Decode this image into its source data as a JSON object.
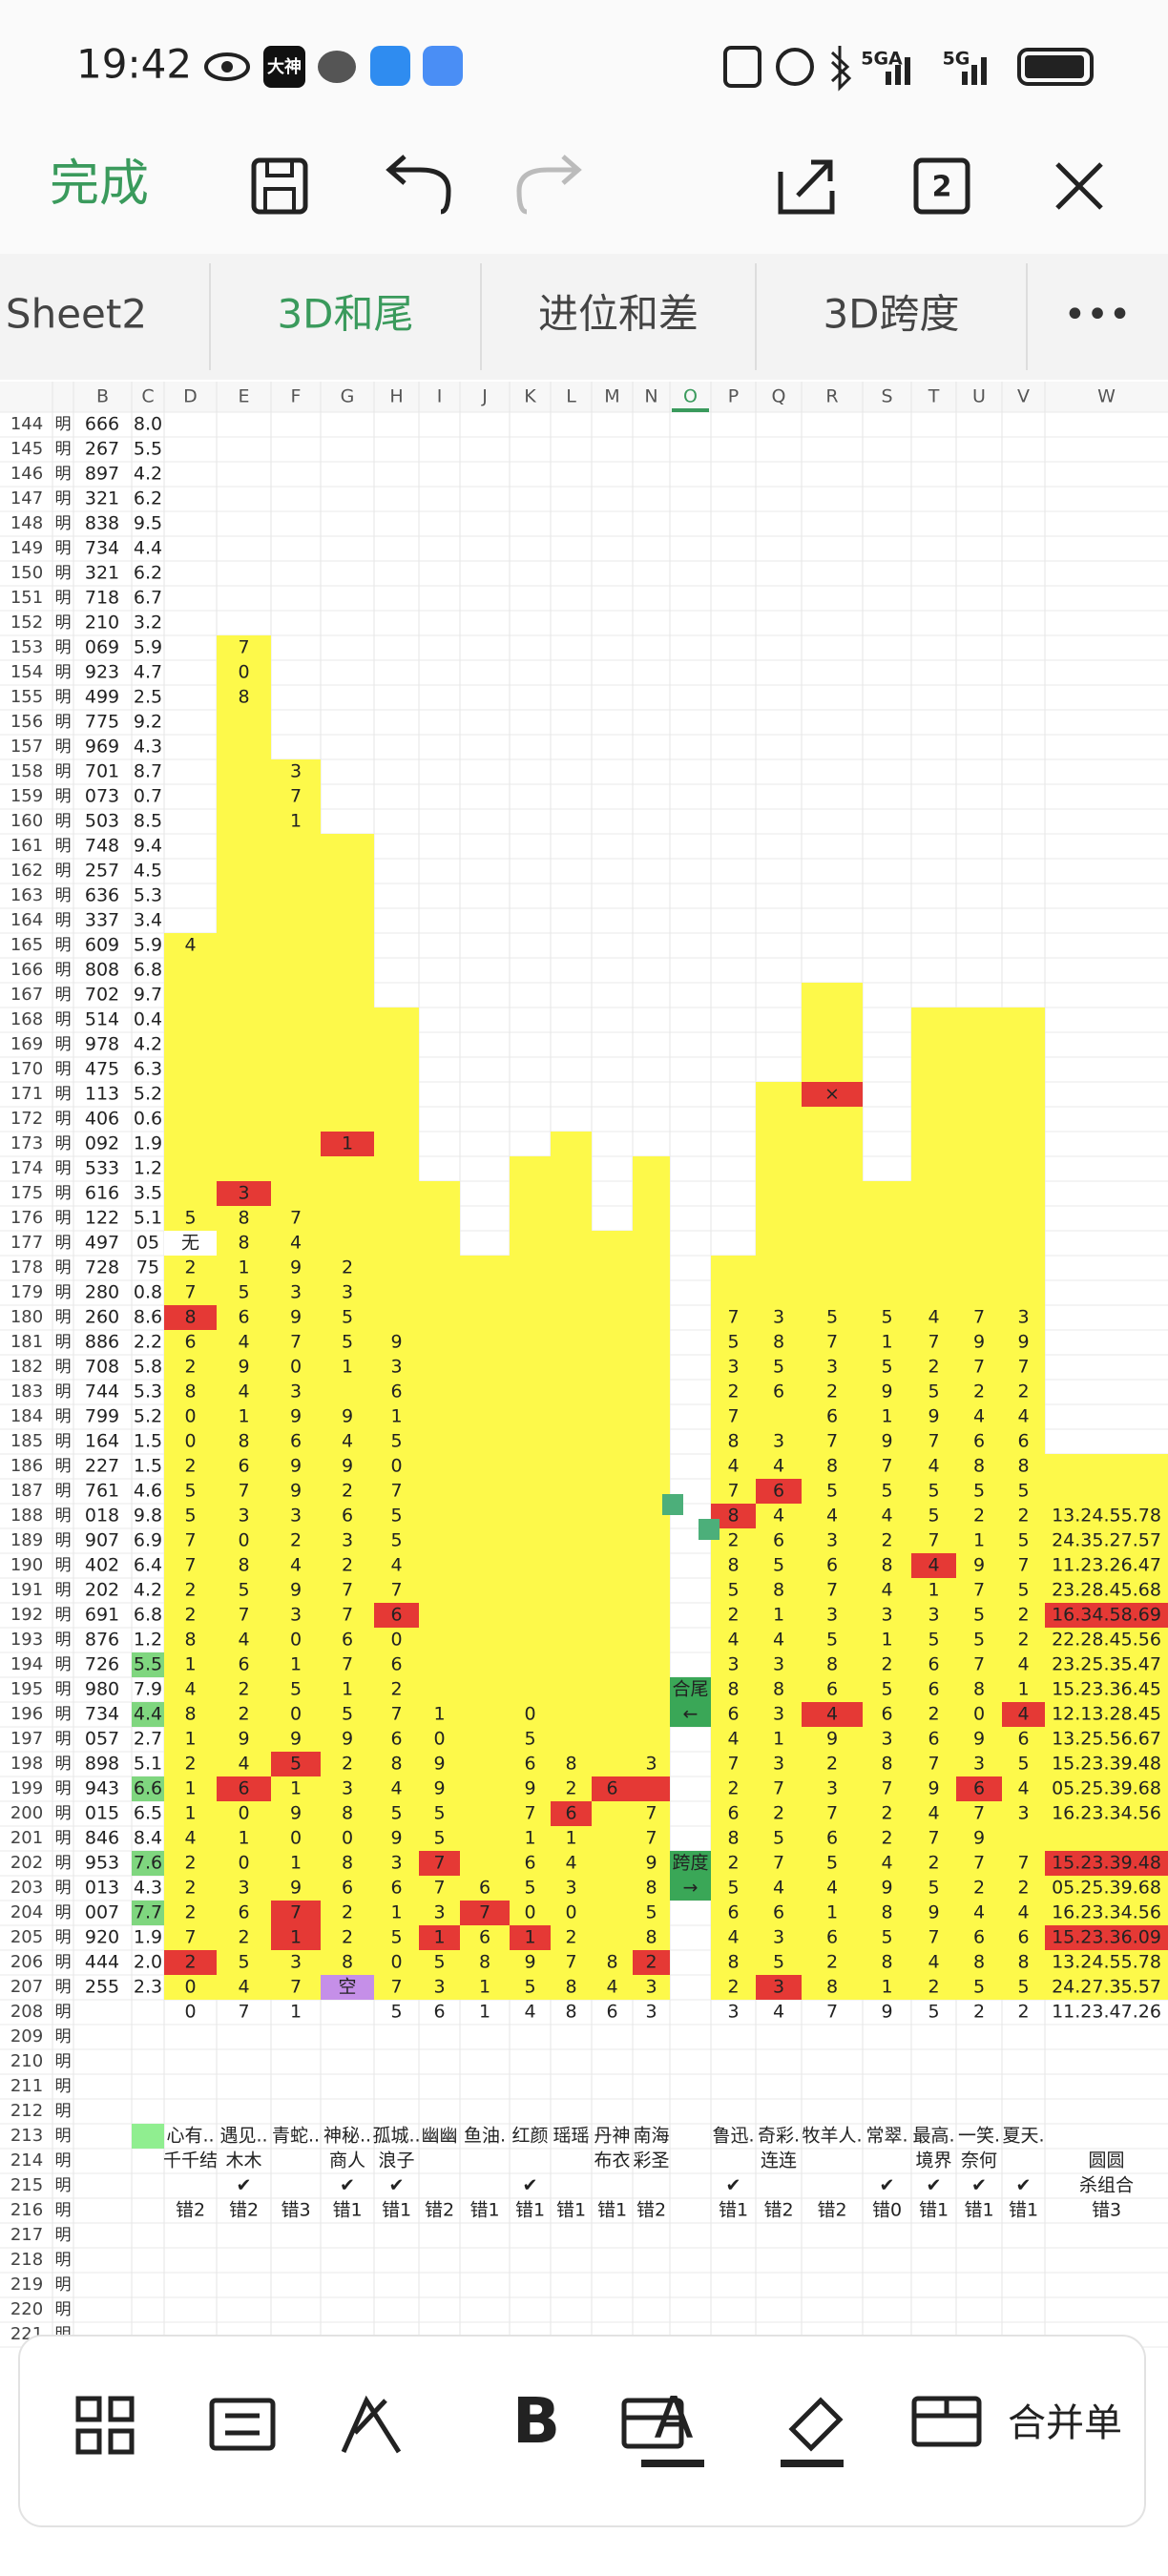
{
  "status": {
    "time": "19:42",
    "app_badge": "大神",
    "signal1": "5GA",
    "signal2": "5G"
  },
  "toolbar": {
    "done": "完成",
    "page_count": "2"
  },
  "tabs": [
    "Sheet2",
    "3D和尾",
    "进位和差",
    "3D跨度"
  ],
  "columns": [
    "B",
    "C",
    "D",
    "E",
    "F",
    "G",
    "H",
    "I",
    "J",
    "K",
    "L",
    "M",
    "N",
    "O",
    "P",
    "Q",
    "R",
    "S",
    "T",
    "U",
    "V",
    "W"
  ],
  "rows": [
    {
      "n": "144",
      "a": "明",
      "b": "666",
      "c": "8.0"
    },
    {
      "n": "145",
      "a": "明",
      "b": "267",
      "c": "5.5"
    },
    {
      "n": "146",
      "a": "明",
      "b": "897",
      "c": "4.2"
    },
    {
      "n": "147",
      "a": "明",
      "b": "321",
      "c": "6.2"
    },
    {
      "n": "148",
      "a": "明",
      "b": "838",
      "c": "9.5"
    },
    {
      "n": "149",
      "a": "明",
      "b": "734",
      "c": "4.4"
    },
    {
      "n": "150",
      "a": "明",
      "b": "321",
      "c": "6.2"
    },
    {
      "n": "151",
      "a": "明",
      "b": "718",
      "c": "6.7"
    },
    {
      "n": "152",
      "a": "明",
      "b": "210",
      "c": "3.2"
    },
    {
      "n": "153",
      "a": "明",
      "b": "069",
      "c": "5.9",
      "cells": {
        "E": "7"
      }
    },
    {
      "n": "154",
      "a": "明",
      "b": "923",
      "c": "4.7",
      "cells": {
        "E": "0"
      }
    },
    {
      "n": "155",
      "a": "明",
      "b": "499",
      "c": "2.5",
      "cells": {
        "E": "8"
      }
    },
    {
      "n": "156",
      "a": "明",
      "b": "775",
      "c": "9.2"
    },
    {
      "n": "157",
      "a": "明",
      "b": "969",
      "c": "4.3"
    },
    {
      "n": "158",
      "a": "明",
      "b": "701",
      "c": "8.7",
      "cells": {
        "F": "3"
      }
    },
    {
      "n": "159",
      "a": "明",
      "b": "073",
      "c": "0.7",
      "cells": {
        "F": "7"
      }
    },
    {
      "n": "160",
      "a": "明",
      "b": "503",
      "c": "8.5",
      "cells": {
        "F": "1"
      }
    },
    {
      "n": "161",
      "a": "明",
      "b": "748",
      "c": "9.4"
    },
    {
      "n": "162",
      "a": "明",
      "b": "257",
      "c": "4.5"
    },
    {
      "n": "163",
      "a": "明",
      "b": "636",
      "c": "5.3"
    },
    {
      "n": "164",
      "a": "明",
      "b": "337",
      "c": "3.4"
    },
    {
      "n": "165",
      "a": "明",
      "b": "609",
      "c": "5.9",
      "cells": {
        "D": "4"
      }
    },
    {
      "n": "166",
      "a": "明",
      "b": "808",
      "c": "6.8"
    },
    {
      "n": "167",
      "a": "明",
      "b": "702",
      "c": "9.7"
    },
    {
      "n": "168",
      "a": "明",
      "b": "514",
      "c": "0.4"
    },
    {
      "n": "169",
      "a": "明",
      "b": "978",
      "c": "4.2"
    },
    {
      "n": "170",
      "a": "明",
      "b": "475",
      "c": "6.3"
    },
    {
      "n": "171",
      "a": "明",
      "b": "113",
      "c": "5.2",
      "cells": {
        "R": {
          "text": "×",
          "fill": "#e53935"
        }
      }
    },
    {
      "n": "172",
      "a": "明",
      "b": "406",
      "c": "0.6"
    },
    {
      "n": "173",
      "a": "明",
      "b": "092",
      "c": "1.9",
      "cells": {
        "G": {
          "text": "1",
          "fill": "#e53935"
        }
      }
    },
    {
      "n": "174",
      "a": "明",
      "b": "533",
      "c": "1.2"
    },
    {
      "n": "175",
      "a": "明",
      "b": "616",
      "c": "3.5",
      "cells": {
        "E": {
          "text": "3",
          "fill": "#e53935"
        }
      }
    },
    {
      "n": "176",
      "a": "明",
      "b": "122",
      "c": "5.1",
      "cells": {
        "D": "5",
        "E": "8",
        "F": "7"
      }
    },
    {
      "n": "177",
      "a": "明",
      "b": "497",
      "c": "05",
      "cells": {
        "D": {
          "text": "无",
          "fill": "#ffffff"
        },
        "E": "8",
        "F": "4"
      }
    },
    {
      "n": "178",
      "a": "明",
      "b": "728",
      "c": "75",
      "cells": {
        "D": "2",
        "E": "1",
        "F": "9",
        "G": "2"
      }
    },
    {
      "n": "179",
      "a": "明",
      "b": "280",
      "c": "0.8",
      "cells": {
        "D": "7",
        "E": "5",
        "F": "3",
        "G": "3"
      }
    },
    {
      "n": "180",
      "a": "明",
      "b": "260",
      "c": "8.6",
      "cells": {
        "D": {
          "text": "8",
          "fill": "#e53935"
        },
        "E": "6",
        "F": "9",
        "G": "5",
        "P": "7",
        "Q": "3",
        "R": "5",
        "S": "5",
        "T": "4",
        "U": "7",
        "V": "3"
      }
    },
    {
      "n": "181",
      "a": "明",
      "b": "886",
      "c": "2.2",
      "cells": {
        "D": "6",
        "E": "4",
        "F": "7",
        "G": "5",
        "H": "9",
        "P": "5",
        "Q": "8",
        "R": "7",
        "S": "1",
        "T": "7",
        "U": "9",
        "V": "9"
      }
    },
    {
      "n": "182",
      "a": "明",
      "b": "708",
      "c": "5.8",
      "cells": {
        "D": "2",
        "E": "9",
        "F": "0",
        "G": "1",
        "H": "3",
        "P": "3",
        "Q": "5",
        "R": "3",
        "S": "5",
        "T": "2",
        "U": "7",
        "V": "7"
      }
    },
    {
      "n": "183",
      "a": "明",
      "b": "744",
      "c": "5.3",
      "cells": {
        "D": "8",
        "E": "4",
        "F": "3",
        "H": "6",
        "P": "2",
        "Q": "6",
        "R": "2",
        "S": "9",
        "T": "5",
        "U": "2",
        "V": "2"
      }
    },
    {
      "n": "184",
      "a": "明",
      "b": "799",
      "c": "5.2",
      "cells": {
        "D": "0",
        "E": "1",
        "F": "9",
        "G": "9",
        "H": "1",
        "P": "7",
        "R": "6",
        "S": "1",
        "T": "9",
        "U": "4",
        "V": "4"
      }
    },
    {
      "n": "185",
      "a": "明",
      "b": "164",
      "c": "1.5",
      "cells": {
        "D": "0",
        "E": "8",
        "F": "6",
        "G": "4",
        "H": "5",
        "P": "8",
        "Q": "3",
        "R": "7",
        "S": "9",
        "T": "7",
        "U": "6",
        "V": "6"
      }
    },
    {
      "n": "186",
      "a": "明",
      "b": "227",
      "c": "1.5",
      "cells": {
        "D": "2",
        "E": "6",
        "F": "9",
        "G": "9",
        "H": "0",
        "P": "4",
        "Q": "4",
        "R": "8",
        "S": "7",
        "T": "4",
        "U": "8",
        "V": "8"
      }
    },
    {
      "n": "187",
      "a": "明",
      "b": "761",
      "c": "4.6",
      "cells": {
        "D": "5",
        "E": "7",
        "F": "9",
        "G": "2",
        "H": "7",
        "P": "7",
        "Q": {
          "text": "6",
          "fill": "#e53935"
        },
        "R": "5",
        "S": "5",
        "T": "5",
        "U": "5",
        "V": "5"
      }
    },
    {
      "n": "188",
      "a": "明",
      "b": "018",
      "c": "9.8",
      "cells": {
        "D": "5",
        "E": "3",
        "F": "3",
        "G": "6",
        "H": "5",
        "P": {
          "text": "8",
          "fill": "#e53935"
        },
        "Q": "4",
        "R": "4",
        "S": "4",
        "T": "5",
        "U": "2",
        "V": "2",
        "W": "13.24.55.78"
      }
    },
    {
      "n": "189",
      "a": "明",
      "b": "907",
      "c": "6.9",
      "cells": {
        "D": "7",
        "E": "0",
        "F": "2",
        "G": "3",
        "H": "5",
        "P": "2",
        "Q": "6",
        "R": "3",
        "S": "2",
        "T": "7",
        "U": "1",
        "V": "5",
        "W": "24.35.27.57"
      }
    },
    {
      "n": "190",
      "a": "明",
      "b": "402",
      "c": "6.4",
      "cells": {
        "D": "7",
        "E": "8",
        "F": "4",
        "G": "2",
        "H": "4",
        "P": "8",
        "Q": "5",
        "R": "6",
        "S": "8",
        "T": {
          "text": "4",
          "fill": "#e53935"
        },
        "U": "9",
        "V": "7",
        "W": "11.23.26.47"
      }
    },
    {
      "n": "191",
      "a": "明",
      "b": "202",
      "c": "4.2",
      "cells": {
        "D": "2",
        "E": "5",
        "F": "9",
        "G": "7",
        "H": "7",
        "P": "5",
        "Q": "8",
        "R": "7",
        "S": "4",
        "T": "1",
        "U": "7",
        "V": "5",
        "W": "23.28.45.68"
      }
    },
    {
      "n": "192",
      "a": "明",
      "b": "691",
      "c": "6.8",
      "cells": {
        "D": "2",
        "E": "7",
        "F": "3",
        "G": "7",
        "H": {
          "text": "6",
          "fill": "#e53935"
        },
        "P": "2",
        "Q": "1",
        "R": "3",
        "S": "3",
        "T": "3",
        "U": "5",
        "V": "2",
        "W": {
          "text": "16.34.58.69",
          "fill": "#e53935"
        }
      }
    },
    {
      "n": "193",
      "a": "明",
      "b": "876",
      "c": "1.2",
      "cells": {
        "D": "8",
        "E": "4",
        "F": "0",
        "G": "6",
        "H": "0",
        "P": "4",
        "Q": "4",
        "R": "5",
        "S": "1",
        "T": "5",
        "U": "5",
        "V": "2",
        "W": "22.28.45.56"
      }
    },
    {
      "n": "194",
      "a": "明",
      "b": "726",
      "c": {
        "text": "5.5",
        "fill": "#7fd67f"
      },
      "cells": {
        "D": "1",
        "E": "6",
        "F": "1",
        "G": "7",
        "H": "6",
        "P": "3",
        "Q": "3",
        "R": "8",
        "S": "2",
        "T": "6",
        "U": "7",
        "V": "4",
        "W": "23.25.35.47"
      }
    },
    {
      "n": "195",
      "a": "明",
      "b": "980",
      "c": "7.9",
      "cells": {
        "D": "4",
        "E": "2",
        "F": "5",
        "G": "1",
        "H": "2",
        "O": {
          "text": "合尾",
          "fill": "#3aa757"
        },
        "P": "8",
        "Q": "8",
        "R": "6",
        "S": "5",
        "T": "6",
        "U": "8",
        "V": "1",
        "W": "15.23.36.45"
      }
    },
    {
      "n": "196",
      "a": "明",
      "b": "734",
      "c": {
        "text": "4.4",
        "fill": "#7fd67f"
      },
      "cells": {
        "D": "8",
        "E": "2",
        "F": "0",
        "G": "5",
        "H": "7",
        "I": "1",
        "K": "0",
        "O": {
          "text": "←",
          "fill": "#3aa757"
        },
        "P": "6",
        "Q": "3",
        "R": {
          "text": "4",
          "fill": "#e53935"
        },
        "S": "6",
        "T": "2",
        "U": "0",
        "V": {
          "text": "4",
          "fill": "#e53935"
        },
        "W": "12.13.28.45"
      }
    },
    {
      "n": "197",
      "a": "明",
      "b": "057",
      "c": "2.7",
      "cells": {
        "D": "1",
        "E": "9",
        "F": "9",
        "G": "9",
        "H": "6",
        "I": "0",
        "K": "5",
        "P": "4",
        "Q": "1",
        "R": "9",
        "S": "3",
        "T": "6",
        "U": "9",
        "V": "6",
        "W": "13.25.56.67"
      }
    },
    {
      "n": "198",
      "a": "明",
      "b": "898",
      "c": "5.1",
      "cells": {
        "D": "2",
        "E": "4",
        "F": {
          "text": "5",
          "fill": "#e53935"
        },
        "G": "2",
        "H": "8",
        "I": "9",
        "K": "6",
        "L": "8",
        "N": "3",
        "P": "7",
        "Q": "3",
        "R": "2",
        "S": "8",
        "T": "7",
        "U": "3",
        "V": "5",
        "W": "15.23.39.48"
      }
    },
    {
      "n": "199",
      "a": "明",
      "b": "943",
      "c": {
        "text": "6.6",
        "fill": "#7fd67f"
      },
      "cells": {
        "D": "1",
        "E": {
          "text": "6",
          "fill": "#e53935"
        },
        "F": "1",
        "G": "3",
        "H": "4",
        "I": "9",
        "K": "9",
        "L": "2",
        "M": {
          "text": "6",
          "fill": "#e53935"
        },
        "N": {
          "fill": "#e53935"
        },
        "P": "2",
        "Q": "7",
        "R": "3",
        "S": "7",
        "T": "9",
        "U": {
          "text": "6",
          "fill": "#e53935"
        },
        "V": "4",
        "W": "05.25.39.68"
      }
    },
    {
      "n": "200",
      "a": "明",
      "b": "015",
      "c": "6.5",
      "cells": {
        "D": "1",
        "E": "0",
        "F": "9",
        "G": "8",
        "H": "5",
        "I": "5",
        "K": "7",
        "L": {
          "text": "6",
          "fill": "#e53935"
        },
        "N": "7",
        "P": "6",
        "Q": "2",
        "R": "7",
        "S": "2",
        "T": "4",
        "U": "7",
        "V": "3",
        "W": "16.23.34.56"
      }
    },
    {
      "n": "201",
      "a": "明",
      "b": "846",
      "c": "8.4",
      "cells": {
        "D": "4",
        "E": "1",
        "F": "0",
        "G": "0",
        "H": "9",
        "I": "5",
        "K": "1",
        "L": "1",
        "N": "7",
        "P": "8",
        "Q": "5",
        "R": "6",
        "S": "2",
        "T": "7",
        "U": "9"
      }
    },
    {
      "n": "202",
      "a": "明",
      "b": "953",
      "c": {
        "text": "7.6",
        "fill": "#7fd67f"
      },
      "cells": {
        "D": "2",
        "E": "0",
        "F": "1",
        "G": "8",
        "H": "3",
        "I": {
          "text": "7",
          "fill": "#e53935"
        },
        "K": "6",
        "L": "4",
        "N": "9",
        "O": {
          "text": "跨度",
          "fill": "#3aa757"
        },
        "P": "2",
        "Q": "7",
        "R": "5",
        "S": "4",
        "T": "2",
        "U": "7",
        "V": "7",
        "W": {
          "text": "15.23.39.48",
          "fill": "#e53935"
        }
      }
    },
    {
      "n": "203",
      "a": "明",
      "b": "013",
      "c": "4.3",
      "cells": {
        "D": "2",
        "E": "3",
        "F": "9",
        "G": "6",
        "H": "6",
        "I": "7",
        "J": "6",
        "K": "5",
        "L": "3",
        "N": "8",
        "O": {
          "text": "→",
          "fill": "#3aa757"
        },
        "P": "5",
        "Q": "4",
        "R": "4",
        "S": "9",
        "T": "5",
        "U": "2",
        "V": "2",
        "W": "05.25.39.68"
      }
    },
    {
      "n": "204",
      "a": "明",
      "b": "007",
      "c": {
        "text": "7.7",
        "fill": "#7fd67f"
      },
      "cells": {
        "D": "2",
        "E": "6",
        "F": {
          "text": "7",
          "fill": "#e53935"
        },
        "G": "2",
        "H": "1",
        "I": "3",
        "J": {
          "text": "7",
          "fill": "#e53935"
        },
        "K": "0",
        "L": "0",
        "N": "5",
        "P": "6",
        "Q": "6",
        "R": "1",
        "S": "8",
        "T": "9",
        "U": "4",
        "V": "4",
        "W": "16.23.34.56"
      }
    },
    {
      "n": "205",
      "a": "明",
      "b": "920",
      "c": "1.9",
      "cells": {
        "D": "7",
        "E": "2",
        "F": {
          "text": "1",
          "fill": "#e53935"
        },
        "G": "2",
        "H": "5",
        "I": {
          "text": "1",
          "fill": "#e53935"
        },
        "J": "6",
        "K": {
          "text": "1",
          "fill": "#e53935"
        },
        "L": "2",
        "N": "8",
        "P": "4",
        "Q": "3",
        "R": "6",
        "S": "5",
        "T": "7",
        "U": "6",
        "V": "6",
        "W": {
          "text": "15.23.36.09",
          "fill": "#e53935"
        }
      }
    },
    {
      "n": "206",
      "a": "明",
      "b": "444",
      "c": "2.0",
      "cells": {
        "D": {
          "text": "2",
          "fill": "#e53935"
        },
        "E": "5",
        "F": "3",
        "G": "8",
        "H": "0",
        "I": "5",
        "J": "8",
        "K": "9",
        "L": "7",
        "M": "8",
        "N": {
          "text": "2",
          "fill": "#e53935"
        },
        "P": "8",
        "Q": "5",
        "R": "2",
        "S": "8",
        "T": "4",
        "U": "8",
        "V": "8",
        "W": "13.24.55.78"
      }
    },
    {
      "n": "207",
      "a": "明",
      "b": "255",
      "c": "2.3",
      "cells": {
        "D": "0",
        "E": "4",
        "F": "7",
        "G": {
          "text": "空",
          "fill": "#c58fe8"
        },
        "H": "7",
        "I": "3",
        "J": "1",
        "K": "5",
        "L": "8",
        "M": "4",
        "N": "3",
        "P": "2",
        "Q": {
          "text": "3",
          "fill": "#e53935"
        },
        "R": "8",
        "S": "1",
        "T": "2",
        "U": "5",
        "V": "5",
        "W": "24.27.35.57"
      }
    },
    {
      "n": "208",
      "a": "明",
      "cells": {
        "D": "0",
        "E": "7",
        "F": "1",
        "H": "5",
        "I": "6",
        "J": "1",
        "K": "4",
        "L": "8",
        "M": "6",
        "N": "3",
        "P": "3",
        "Q": "4",
        "R": "7",
        "S": "9",
        "T": "5",
        "U": "2",
        "V": "2",
        "W": "11.23.47.26"
      }
    },
    {
      "n": "209",
      "a": "明"
    },
    {
      "n": "210",
      "a": "明"
    },
    {
      "n": "211",
      "a": "明"
    },
    {
      "n": "212",
      "a": "明"
    },
    {
      "n": "213",
      "a": "明",
      "c": {
        "fill": "#90ee90"
      },
      "cells": {
        "D": "心有..",
        "E": "遇见..",
        "F": "青蛇..",
        "G": "神秘..",
        "H": "孤城..",
        "I": "幽幽",
        "J": "鱼油.",
        "K": "红颜",
        "L": "瑶瑶",
        "M": "丹神",
        "N": "南海",
        "P": "鲁迅.",
        "Q": "奇彩.",
        "R": "牧羊人.",
        "S": "常翠.",
        "T": "最高.",
        "U": "一笑.",
        "V": "夏天."
      }
    },
    {
      "n": "214",
      "a": "明",
      "cells": {
        "D": "千千结",
        "E": "木木",
        "G": "商人",
        "H": "浪子",
        "M": "布衣",
        "N": "彩圣",
        "Q": "连连",
        "T": "境界",
        "U": "奈何",
        "W": "圆圆"
      }
    },
    {
      "n": "215",
      "a": "明",
      "cells": {
        "E": "✔",
        "G": "✔",
        "H": "✔",
        "K": "✔",
        "P": "✔",
        "S": "✔",
        "T": "✔",
        "U": "✔",
        "V": "✔",
        "W": "杀组合"
      }
    },
    {
      "n": "216",
      "a": "明",
      "cells": {
        "D": "错2",
        "E": "错2",
        "F": "错3",
        "G": "错1",
        "H": "错1",
        "I": "错2",
        "J": "错1",
        "K": "错1",
        "L": "错1",
        "M": "错1",
        "N": "错2",
        "P": "错1",
        "Q": "错2",
        "R": "错2",
        "S": "错0",
        "T": "错1",
        "U": "错1",
        "V": "错1",
        "W": "错3"
      }
    },
    {
      "n": "217",
      "a": "明"
    },
    {
      "n": "218",
      "a": "明"
    },
    {
      "n": "219",
      "a": "明"
    },
    {
      "n": "220",
      "a": "明"
    },
    {
      "n": "221",
      "a": "明"
    }
  ],
  "bottom_bar": {
    "bold_icon": "B",
    "font_color_icon": "A",
    "merge": "合并单"
  }
}
